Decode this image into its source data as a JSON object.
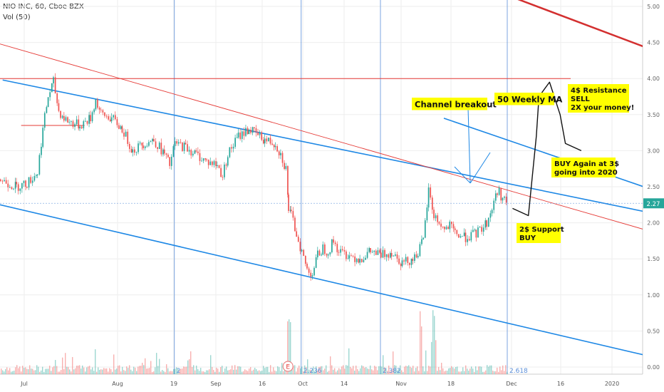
{
  "header": {
    "symbol_line": "NIO INC, 60, Cboe BZX",
    "volume_line": "Vol (50)"
  },
  "chart_data": {
    "type": "candlestick",
    "title": "NIO INC, 60, Cboe BZX",
    "ylim": [
      -0.1,
      5.1
    ],
    "y_ticks": [
      "5.00",
      "4.50",
      "4.00",
      "3.50",
      "3.00",
      "2.50",
      "2.00",
      "1.50",
      "1.00",
      "0.50",
      "0.00"
    ],
    "x_ticks": [
      "Jul",
      "Aug",
      "19",
      "Sep",
      "16",
      "Oct",
      "14",
      "Nov",
      "18",
      "Dec",
      "16",
      "2020"
    ],
    "last_price": "2.27",
    "price_path": [
      [
        0,
        2.6
      ],
      [
        3,
        2.5
      ],
      [
        5,
        2.55
      ],
      [
        7,
        2.7
      ],
      [
        8,
        3.3
      ],
      [
        9,
        3.75
      ],
      [
        10,
        3.95
      ],
      [
        11,
        3.55
      ],
      [
        12,
        3.45
      ],
      [
        13,
        3.4
      ],
      [
        15,
        3.35
      ],
      [
        17,
        3.45
      ],
      [
        18,
        3.7
      ],
      [
        19,
        3.5
      ],
      [
        21,
        3.45
      ],
      [
        23,
        3.3
      ],
      [
        25,
        3.0
      ],
      [
        27,
        3.1
      ],
      [
        29,
        3.15
      ],
      [
        31,
        2.95
      ],
      [
        32,
        2.8
      ],
      [
        33,
        3.1
      ],
      [
        35,
        3.05
      ],
      [
        37,
        2.95
      ],
      [
        39,
        2.85
      ],
      [
        41,
        2.8
      ],
      [
        42,
        2.65
      ],
      [
        43,
        2.95
      ],
      [
        45,
        3.2
      ],
      [
        47,
        3.3
      ],
      [
        48,
        3.25
      ],
      [
        50,
        3.15
      ],
      [
        52,
        3.1
      ],
      [
        53,
        2.95
      ],
      [
        54,
        2.75
      ],
      [
        54.5,
        2.2
      ],
      [
        55,
        2.1
      ],
      [
        56,
        1.85
      ],
      [
        57,
        1.6
      ],
      [
        58,
        1.35
      ],
      [
        59,
        1.3
      ],
      [
        60,
        1.55
      ],
      [
        61,
        1.65
      ],
      [
        62,
        1.6
      ],
      [
        63,
        1.75
      ],
      [
        64,
        1.6
      ],
      [
        66,
        1.55
      ],
      [
        68,
        1.5
      ],
      [
        70,
        1.6
      ],
      [
        72,
        1.55
      ],
      [
        74,
        1.6
      ],
      [
        76,
        1.45
      ],
      [
        78,
        1.5
      ],
      [
        79,
        1.6
      ],
      [
        80,
        1.75
      ],
      [
        81,
        2.45
      ],
      [
        82,
        2.1
      ],
      [
        83,
        2.0
      ],
      [
        84,
        1.9
      ],
      [
        85,
        1.95
      ],
      [
        86,
        1.85
      ],
      [
        88,
        1.8
      ],
      [
        90,
        1.85
      ],
      [
        92,
        2.0
      ],
      [
        93,
        2.2
      ],
      [
        94,
        2.45
      ],
      [
        95,
        2.35
      ],
      [
        96,
        2.25
      ]
    ],
    "x_ref_total": 96,
    "channel_lines": [
      {
        "color": "#1e88e5",
        "from": [
          0.5,
          3.98
        ],
        "to": [
          127,
          2.08
        ]
      },
      {
        "color": "#1e88e5",
        "from": [
          0,
          2.25
        ],
        "to": [
          127,
          0.08
        ]
      },
      {
        "color": "#1e88e5",
        "from": [
          84,
          3.45
        ],
        "to": [
          127,
          2.37
        ]
      },
      {
        "color": "#e53935",
        "from": [
          0,
          4.48
        ],
        "to": [
          127,
          1.8
        ]
      },
      {
        "color": "#d32f2f",
        "from": [
          98,
          5.1
        ],
        "to": [
          127,
          4.3
        ]
      }
    ],
    "resistance_line": {
      "y": 4.0,
      "x_from": 0,
      "x_to": 108
    },
    "short_support": {
      "y": 3.35,
      "x_from": 4,
      "x_to": 16
    },
    "volume_labels": [
      {
        "text": "2",
        "x": 33
      },
      {
        "text": "2.236",
        "x": 57
      },
      {
        "text": "2.382",
        "x": 72
      },
      {
        "text": "2.618",
        "x": 96
      }
    ],
    "fib_lines_x": [
      33,
      57,
      72,
      96
    ],
    "events": [
      {
        "label": "E",
        "x": 54.5
      }
    ],
    "annotations": [
      {
        "text": "Channel breakout",
        "lines": [
          "Channel breakout"
        ]
      },
      {
        "text": "50 Weekly MA",
        "lines": [
          "50 Weekly MA"
        ]
      },
      {
        "text": "4$ Resistance SELL 2X your money!",
        "lines": [
          "4$ Resistance",
          "SELL",
          "2X your money!"
        ]
      },
      {
        "text": "BUY Again at 3$ going into 2020",
        "lines": [
          "BUY Again at 3$",
          "going into 2020"
        ]
      },
      {
        "text": "2$ Support BUY",
        "lines": [
          "2$ Support",
          "BUY"
        ]
      }
    ],
    "projection_path": [
      [
        97,
        2.2
      ],
      [
        100,
        2.1
      ],
      [
        101.5,
        3.2
      ],
      [
        102,
        3.75
      ],
      [
        104,
        3.95
      ],
      [
        106,
        3.5
      ],
      [
        107,
        3.1
      ],
      [
        110,
        3.0
      ]
    ],
    "colors": {
      "up": "#26a69a",
      "down": "#ef5350",
      "annotation_bg": "#ffff00",
      "grid": "#eeeeee"
    }
  }
}
